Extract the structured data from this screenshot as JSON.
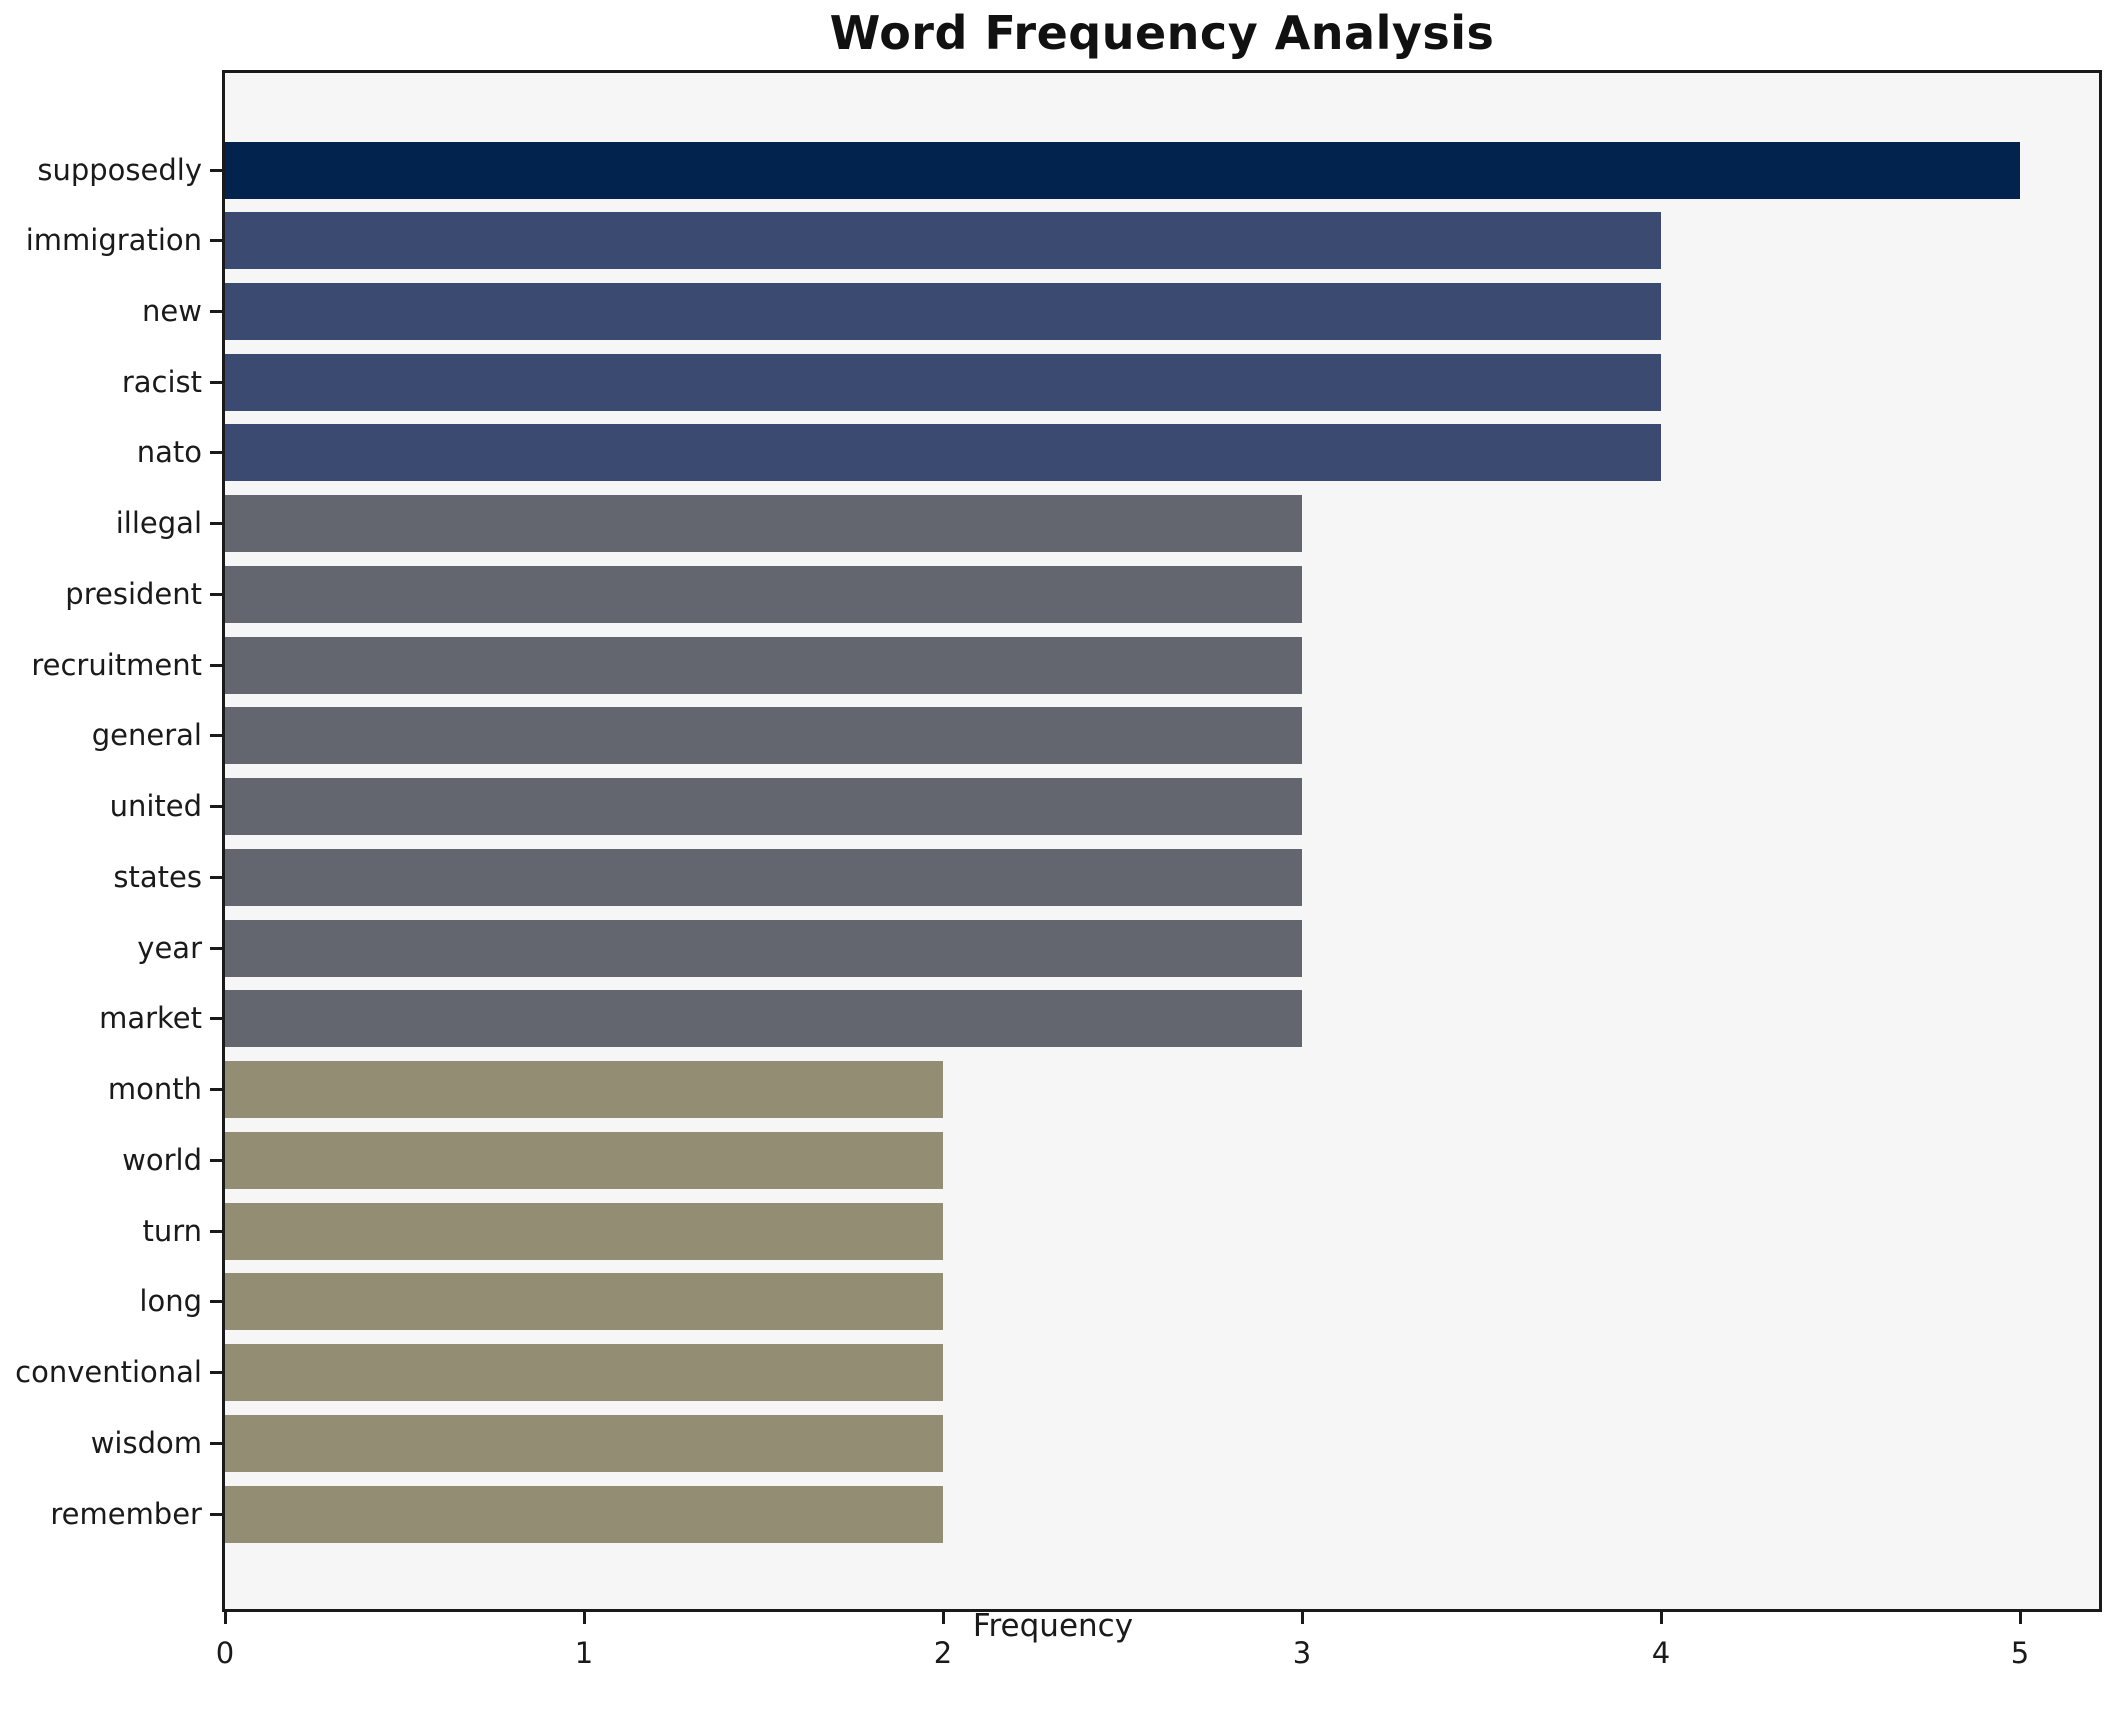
{
  "title": "Word Frequency Analysis",
  "chart_data": {
    "type": "bar",
    "orientation": "horizontal",
    "title": "Word Frequency Analysis",
    "xlabel": "Frequency",
    "ylabel": "",
    "categories": [
      "supposedly",
      "immigration",
      "new",
      "racist",
      "nato",
      "illegal",
      "president",
      "recruitment",
      "general",
      "united",
      "states",
      "year",
      "market",
      "month",
      "world",
      "turn",
      "long",
      "conventional",
      "wisdom",
      "remember"
    ],
    "values": [
      5,
      4,
      4,
      4,
      4,
      3,
      3,
      3,
      3,
      3,
      3,
      3,
      3,
      2,
      2,
      2,
      2,
      2,
      2,
      2
    ],
    "x_ticks": [
      0,
      1,
      2,
      3,
      4,
      5
    ],
    "xlim": [
      0,
      5.22
    ],
    "grid": false,
    "legend": "none",
    "colors_by_value": {
      "5": "#02234e",
      "4": "#3a4a70",
      "3": "#63666f",
      "2": "#938d74"
    },
    "plot_background": "#f6f6f7",
    "figure_background": "#ffffff",
    "axis_color": "#1a1a1a"
  }
}
